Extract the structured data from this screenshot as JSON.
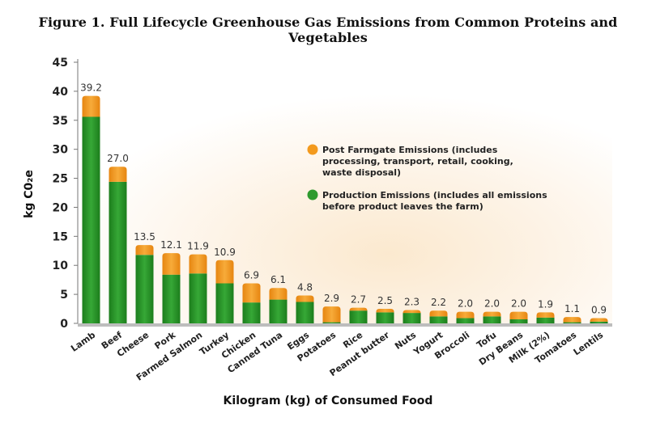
{
  "chart_data": {
    "type": "bar",
    "stacked": true,
    "title": "Figure 1. Full Lifecycle Greenhouse Gas Emissions from Common Proteins and Vegetables",
    "xlabel": "Kilogram (kg) of Consumed Food",
    "ylabel": "kg C0₂e",
    "ylim": [
      0,
      45
    ],
    "yticks": [
      0,
      5,
      10,
      15,
      20,
      25,
      30,
      35,
      40,
      45
    ],
    "legend_position": "center-right",
    "categories": [
      "Lamb",
      "Beef",
      "Cheese",
      "Pork",
      "Farmed Salmon",
      "Turkey",
      "Chicken",
      "Canned Tuna",
      "Eggs",
      "Potatoes",
      "Rice",
      "Peanut butter",
      "Nuts",
      "Yogurt",
      "Broccoli",
      "Tofu",
      "Dry Beans",
      "Milk (2%)",
      "Tomatoes",
      "Lentils"
    ],
    "totals": [
      "39.2",
      "27.0",
      "13.5",
      "12.1",
      "11.9",
      "10.9",
      "6.9",
      "6.1",
      "4.8",
      "2.9",
      "2.7",
      "2.5",
      "2.3",
      "2.2",
      "2.0",
      "2.0",
      "2.0",
      "1.9",
      "1.1",
      "0.9"
    ],
    "series": [
      {
        "name": "Production Emissions (includes all emissions before product leaves the farm)",
        "color": "#2e9a2e",
        "values": [
          35.6,
          24.4,
          11.8,
          8.4,
          8.6,
          6.9,
          3.6,
          4.1,
          3.7,
          0.2,
          2.2,
          1.9,
          1.8,
          1.2,
          0.9,
          1.2,
          0.7,
          1.0,
          0.2,
          0.3
        ]
      },
      {
        "name": "Post Farmgate Emissions (includes processing, transport, retail, cooking, waste disposal)",
        "color": "#f39a1e",
        "values": [
          3.6,
          2.6,
          1.7,
          3.7,
          3.3,
          4.0,
          3.3,
          2.0,
          1.1,
          2.7,
          0.5,
          0.6,
          0.5,
          1.0,
          1.1,
          0.8,
          1.3,
          0.9,
          0.9,
          0.6
        ]
      }
    ]
  }
}
